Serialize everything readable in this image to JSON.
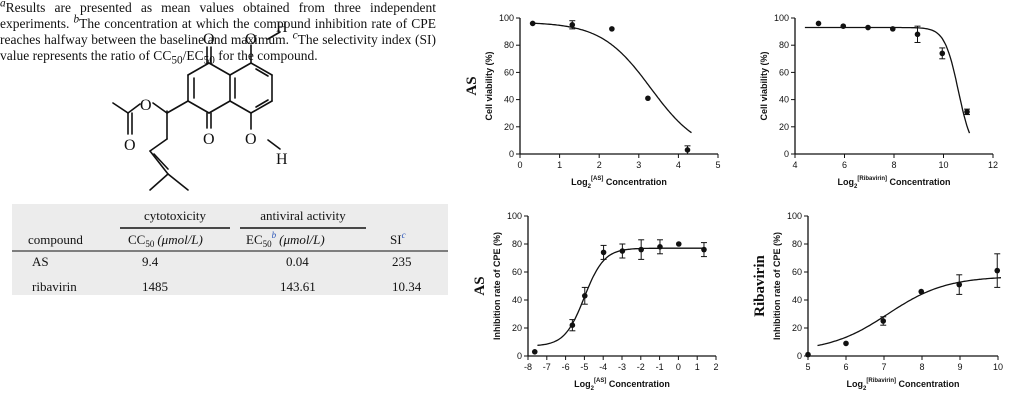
{
  "structure": {
    "atom_labels": [
      "O",
      "O",
      "O",
      "O",
      "O",
      "H",
      "O",
      "H"
    ]
  },
  "table": {
    "group_headers": [
      "cytotoxicity",
      "antiviral activity"
    ],
    "columns": {
      "compound": "compound",
      "cc50": "CC",
      "cc50_sub": "50",
      "cc50_unit": "(μmol/L)",
      "ec50": "EC",
      "ec50_sub": "50",
      "ec50_sup": "b",
      "ec50_unit": "(μmol/L)",
      "si": "SI",
      "si_sup": "c"
    },
    "rows": [
      {
        "compound": "AS",
        "cc50": "9.4",
        "ec50": "0.04",
        "si": "235"
      },
      {
        "compound": "ribavirin",
        "cc50": "1485",
        "ec50": "143.61",
        "si": "10.34"
      }
    ]
  },
  "footnotes": {
    "a_mark": "a",
    "a_text": "Results are presented as mean values obtained from three independent experiments. ",
    "b_mark": "b",
    "b_text": "The concentration at which the compound inhibition rate of CPE reaches halfway between the baseline and maximum. ",
    "c_mark": "c",
    "c_text": "The selectivity index (SI) value represents the ratio of CC",
    "c_sub1": "50",
    "c_mid": "/EC",
    "c_sub2": "50",
    "c_end": " for the compound."
  },
  "chart_data": [
    {
      "type": "scatter",
      "row_label": "AS",
      "ylabel": "Cell viability (%)",
      "xlabel_prefix": "Log",
      "xlabel_sub": "2",
      "xlabel_sup": "[AS]",
      "xlabel_suffix": "Concentration",
      "xlim": [
        0,
        5
      ],
      "ylim": [
        0,
        100
      ],
      "xticks": [
        0,
        1,
        2,
        3,
        4,
        5
      ],
      "yticks": [
        0,
        20,
        40,
        60,
        80,
        100
      ],
      "points": [
        {
          "x": 0.32,
          "y": 96,
          "err": 0
        },
        {
          "x": 1.32,
          "y": 95,
          "err": 3
        },
        {
          "x": 2.32,
          "y": 92,
          "err": 0
        },
        {
          "x": 3.23,
          "y": 41,
          "err": 0
        },
        {
          "x": 4.23,
          "y": 3,
          "err": 3
        }
      ],
      "fit": {
        "top": 97,
        "bottom": 0,
        "ic50": 3.3,
        "hill": -1.6
      }
    },
    {
      "type": "scatter",
      "row_label": "",
      "ylabel": "Cell viability (%)",
      "xlabel_prefix": "Log",
      "xlabel_sub": "2",
      "xlabel_sup": "[Ribavirin]",
      "xlabel_suffix": "Concentration",
      "xlim": [
        4,
        12
      ],
      "ylim": [
        0,
        100
      ],
      "xticks": [
        4,
        6,
        8,
        10,
        12
      ],
      "yticks": [
        0,
        20,
        40,
        60,
        80,
        100
      ],
      "points": [
        {
          "x": 4.95,
          "y": 96,
          "err": 0
        },
        {
          "x": 5.95,
          "y": 94,
          "err": 0
        },
        {
          "x": 6.95,
          "y": 93,
          "err": 0
        },
        {
          "x": 7.95,
          "y": 92,
          "err": 0
        },
        {
          "x": 8.95,
          "y": 88,
          "err": 6
        },
        {
          "x": 9.95,
          "y": 74,
          "err": 4
        },
        {
          "x": 10.95,
          "y": 31,
          "err": 2
        }
      ],
      "fit": {
        "top": 93,
        "bottom": 0,
        "ic50": 10.6,
        "hill": -3.6
      }
    },
    {
      "type": "scatter",
      "row_label": "AS",
      "ylabel": "Inhibition rate of CPE (%)",
      "xlabel_prefix": "Log",
      "xlabel_sub": "2",
      "xlabel_sup": "[AS]",
      "xlabel_suffix": "Concentration",
      "xlim": [
        -8,
        2
      ],
      "ylim": [
        0,
        100
      ],
      "xticks": [
        -8,
        -7,
        -6,
        -5,
        -4,
        -3,
        -2,
        -1,
        0,
        1,
        2
      ],
      "yticks": [
        0,
        20,
        40,
        60,
        80,
        100
      ],
      "points": [
        {
          "x": -7.64,
          "y": 3,
          "err": 0
        },
        {
          "x": -5.64,
          "y": 22,
          "err": 4
        },
        {
          "x": -4.98,
          "y": 43,
          "err": 6
        },
        {
          "x": -3.98,
          "y": 74,
          "err": 5
        },
        {
          "x": -2.98,
          "y": 75,
          "err": 5
        },
        {
          "x": -1.98,
          "y": 76,
          "err": 7
        },
        {
          "x": -0.98,
          "y": 78,
          "err": 5
        },
        {
          "x": 0.02,
          "y": 80,
          "err": 0
        },
        {
          "x": 1.36,
          "y": 76,
          "err": 5
        }
      ],
      "fit": {
        "top": 77,
        "bottom": 7,
        "ic50": -5.0,
        "hill": 1.9
      }
    },
    {
      "type": "scatter",
      "row_label": "Ribavirin",
      "ylabel": "Inhibition rate of CPE (%)",
      "xlabel_prefix": "Log",
      "xlabel_sub": "2",
      "xlabel_sup": "[Ribavirin]",
      "xlabel_suffix": "Concentration",
      "xlim": [
        5,
        10
      ],
      "ylim": [
        0,
        100
      ],
      "xticks": [
        5,
        6,
        7,
        8,
        9,
        10
      ],
      "yticks": [
        0,
        20,
        40,
        60,
        80,
        100
      ],
      "points": [
        {
          "x": 5.0,
          "y": 1,
          "err": 0
        },
        {
          "x": 6.0,
          "y": 9,
          "err": 0
        },
        {
          "x": 6.98,
          "y": 25,
          "err": 3
        },
        {
          "x": 7.98,
          "y": 46,
          "err": 0
        },
        {
          "x": 8.98,
          "y": 51,
          "err": 7
        },
        {
          "x": 9.98,
          "y": 61,
          "err": 12
        }
      ],
      "fit": {
        "top": 57,
        "bottom": 3,
        "ic50": 7.1,
        "hill": 1.3
      }
    }
  ]
}
